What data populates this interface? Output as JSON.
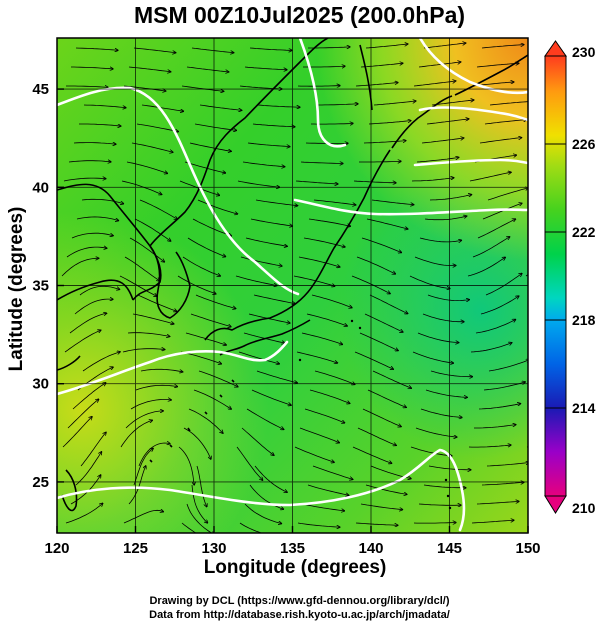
{
  "title": "MSM 00Z10Jul2025 (200.0hPa)",
  "xlabel": "Longitude (degrees)",
  "ylabel": "Latitude  (degrees)",
  "credits": [
    "Drawing by DCL (https://www.gfd-dennou.org/library/dcl/)",
    "Data from http://database.rish.kyoto-u.ac.jp/arch/jmadata/"
  ],
  "map": {
    "projection": "lon-lat",
    "lon_range": [
      120,
      150
    ],
    "lat_range": [
      22.4,
      47.6
    ],
    "lon_ticks": [
      "120",
      "125",
      "130",
      "135",
      "140",
      "145",
      "150"
    ],
    "lat_ticks": [
      "25",
      "30",
      "35",
      "40",
      "45"
    ],
    "field": "temperature (K)",
    "overlay": "wind streamlines",
    "contour_color": "#ffffff",
    "coastline_color": "#000000"
  },
  "colorbar": {
    "min": 210,
    "max": 230,
    "tick_labels": [
      "230",
      "226",
      "222",
      "218",
      "214",
      "210"
    ],
    "colors": [
      "#e6007e",
      "#9a00c8",
      "#1a1ab4",
      "#0064e6",
      "#00aaee",
      "#00d6c0",
      "#00d24a",
      "#46d21e",
      "#a0dc14",
      "#f0e000",
      "#ff9a10",
      "#ff3c1e"
    ]
  }
}
